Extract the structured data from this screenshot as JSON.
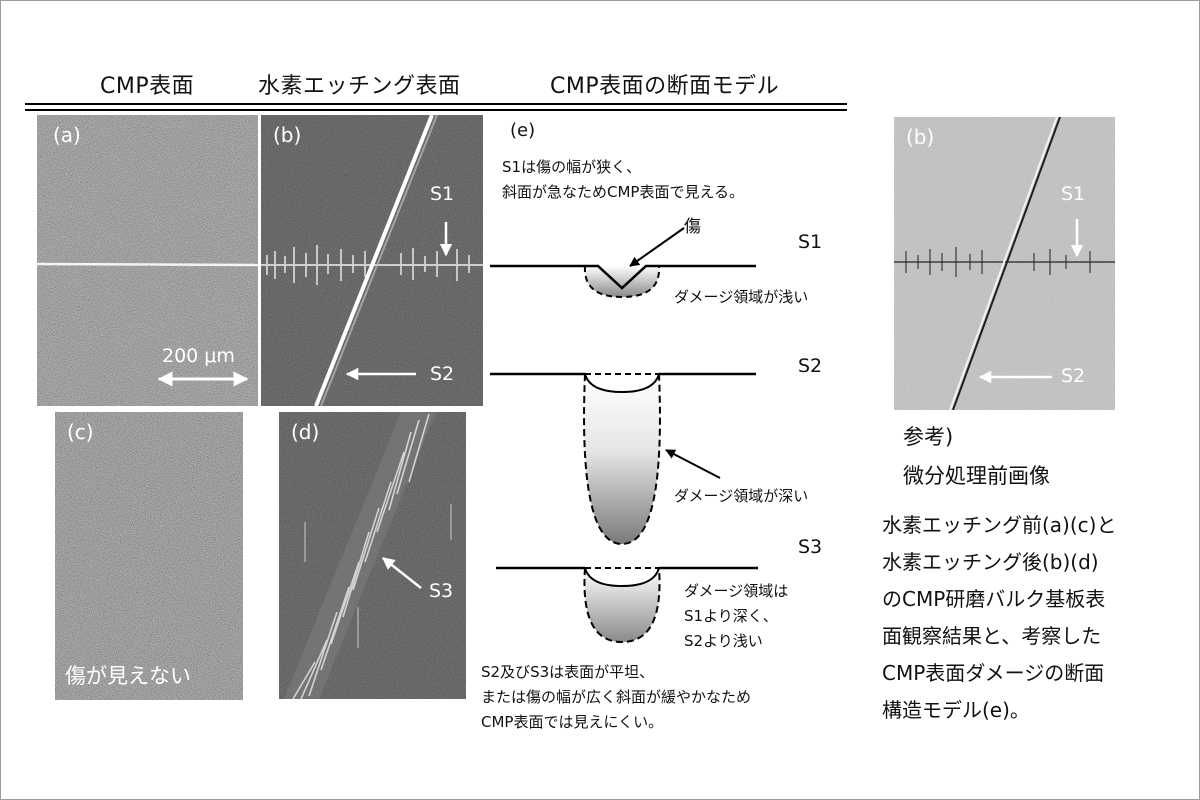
{
  "headers": {
    "cmp_surface": "CMP表面",
    "h_etch_surface": "水素エッチング表面",
    "cross_section_model": "CMP表面の断面モデル"
  },
  "panels": {
    "a": {
      "label": "(a)",
      "scale": "200 μm"
    },
    "b": {
      "label": "(b)",
      "s1": "S1",
      "s2": "S2"
    },
    "c": {
      "label": "(c)",
      "caption": "傷が見えない"
    },
    "d": {
      "label": "(d)",
      "s3": "S3"
    },
    "ref_b": {
      "label": "(b)",
      "s1": "S1",
      "s2": "S2"
    }
  },
  "model": {
    "label": "(e)",
    "s1_note": [
      "S1は傷の幅が狭く、",
      "斜面が急なためCMP表面で見える。"
    ],
    "scratch": "傷",
    "s1": "S1",
    "s1_damage": "ダメージ領域が浅い",
    "s2": "S2",
    "s2_damage": "ダメージ領域が深い",
    "s3": "S3",
    "s3_damage": [
      "ダメージ領域は",
      "S1より深く、",
      "S2より浅い"
    ],
    "bottom_note": [
      "S2及びS3は表面が平坦、",
      "または傷の幅が広く斜面が緩やかなため",
      "CMP表面では見えにくい。"
    ]
  },
  "reference": [
    "参考)",
    "微分処理前画像"
  ],
  "summary": [
    "水素エッチング前(a)(c)と",
    "水素エッチング後(b)(d)",
    "のCMP研磨バルク基板表",
    "面観察結果と、考察した",
    "CMP表面ダメージの断面",
    "構造モデル(e)。"
  ]
}
